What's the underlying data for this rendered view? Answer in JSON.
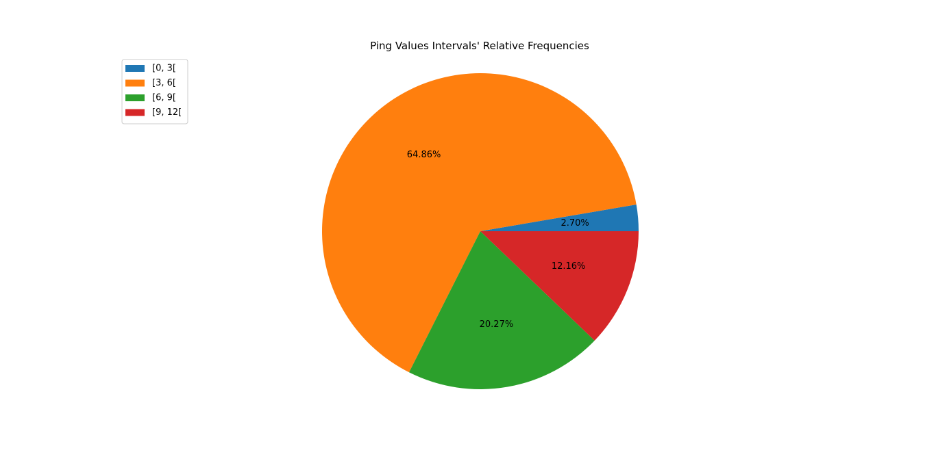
{
  "chart_data": {
    "type": "pie",
    "title": "Ping Values Intervals' Relative Frequencies",
    "legend_position": "top-left",
    "start_angle_deg": 0,
    "direction": "counterclockwise",
    "slices": [
      {
        "label": "[0, 3[",
        "value": 2.7,
        "pct_label": "2.70%",
        "color": "#1f77b4"
      },
      {
        "label": "[3, 6[",
        "value": 64.86,
        "pct_label": "64.86%",
        "color": "#ff7f0e"
      },
      {
        "label": "[6, 9[",
        "value": 20.27,
        "pct_label": "20.27%",
        "color": "#2ca02c"
      },
      {
        "label": "[9, 12[",
        "value": 12.16,
        "pct_label": "12.16%",
        "color": "#d62728"
      }
    ]
  }
}
